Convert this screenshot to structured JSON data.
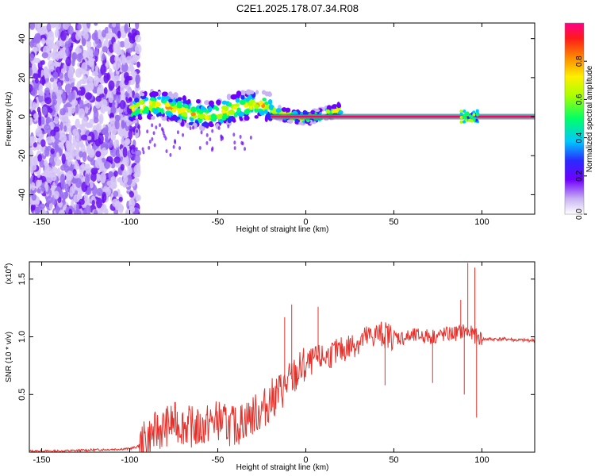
{
  "title": "C2E1.2025.178.07.34.R08",
  "chart_data": [
    {
      "type": "heatmap",
      "xlabel": "Height of straight line (km)",
      "ylabel": "Frequency (Hz)",
      "xlim": [
        -157,
        130
      ],
      "ylim": [
        -50,
        48
      ],
      "x_ticks": [
        -150,
        -100,
        -50,
        0,
        50,
        100
      ],
      "y_ticks": [
        -40,
        -20,
        0,
        20,
        40
      ],
      "colorbar": {
        "label": "Normalized spectral amplitude",
        "ticks": [
          0.0,
          0.2,
          0.4,
          0.6,
          0.8
        ],
        "range": [
          0,
          1
        ],
        "colormap": [
          "#ffffff",
          "#c9b3f2",
          "#7000ff",
          "#2a2aff",
          "#00c8ff",
          "#00ff66",
          "#aaff00",
          "#ffee00",
          "#ff8800",
          "#ff1a1a",
          "#ff0088"
        ]
      },
      "features": [
        {
          "region": "broadband noise",
          "x_range": [
            -157,
            -95
          ],
          "y_range": [
            -50,
            48
          ],
          "amplitude": 0.15
        },
        {
          "region": "signal trace",
          "x_range": [
            -100,
            20
          ],
          "center_frequency_hz": 2,
          "amplitude": 0.5
        },
        {
          "region": "stable carrier",
          "x_range": [
            0,
            130
          ],
          "center_frequency_hz": 0,
          "amplitude": 1.0
        }
      ]
    },
    {
      "type": "line",
      "xlabel": "Height of straight line (km)",
      "ylabel": "SNR (10 * v/v)",
      "y_multiplier": "(x10",
      "y_multiplier_exp": "4",
      "y_multiplier_close": ")",
      "xlim": [
        -157,
        130
      ],
      "ylim": [
        0,
        1.65
      ],
      "x_ticks": [
        -150,
        -100,
        -50,
        0,
        50,
        100
      ],
      "y_ticks": [
        0.5,
        1.0,
        1.5
      ],
      "series": [
        {
          "color": "#e8302a",
          "x": [
            -157,
            -140,
            -120,
            -100,
            -95,
            -90,
            -85,
            -80,
            -75,
            -70,
            -65,
            -60,
            -55,
            -50,
            -45,
            -40,
            -35,
            -30,
            -25,
            -20,
            -15,
            -10,
            -5,
            0,
            5,
            10,
            15,
            20,
            25,
            30,
            35,
            40,
            45,
            50,
            55,
            60,
            65,
            70,
            75,
            80,
            85,
            90,
            95,
            100,
            105,
            110,
            115,
            120,
            125,
            130
          ],
          "y": [
            0.01,
            0.01,
            0.02,
            0.03,
            0.05,
            0.12,
            0.18,
            0.22,
            0.26,
            0.24,
            0.22,
            0.2,
            0.25,
            0.28,
            0.24,
            0.22,
            0.28,
            0.32,
            0.36,
            0.45,
            0.52,
            0.6,
            0.68,
            0.75,
            0.8,
            0.82,
            0.85,
            0.88,
            0.92,
            0.96,
            0.99,
            1.02,
            1.02,
            1.0,
            0.99,
            1.0,
            1.01,
            1.0,
            1.01,
            1.02,
            1.03,
            1.05,
            1.02,
            0.98,
            0.98,
            0.98,
            0.98,
            0.97,
            0.97,
            0.97
          ]
        }
      ],
      "spikes": [
        {
          "x": -12,
          "y": 1.17
        },
        {
          "x": -8,
          "y": 1.28
        },
        {
          "x": 7,
          "y": 1.26
        },
        {
          "x": 43,
          "y": 1.1
        },
        {
          "x": 88,
          "y": 1.32
        },
        {
          "x": 92,
          "y": 1.64
        },
        {
          "x": 96,
          "y": 1.6
        },
        {
          "x": 97,
          "y": 0.3
        },
        {
          "x": 90,
          "y": 0.5
        },
        {
          "x": 45,
          "y": 0.58
        },
        {
          "x": 72,
          "y": 0.6
        }
      ]
    }
  ]
}
